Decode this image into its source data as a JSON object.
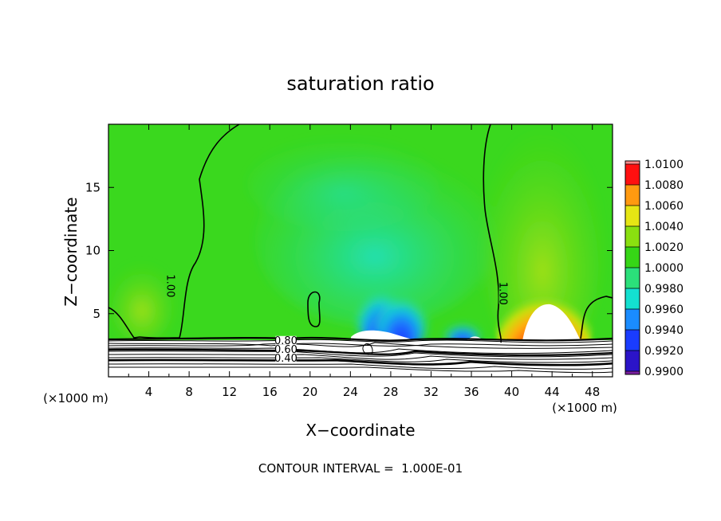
{
  "chart_data": {
    "type": "heatmap",
    "title": "saturation ratio",
    "xlabel": "X−coordinate",
    "ylabel": "Z−coordinate",
    "x_unit": "(×1000 m)",
    "z_unit": "(×1000 m)",
    "xlim": [
      0,
      50
    ],
    "ylim": [
      0,
      20
    ],
    "x_ticks": [
      4,
      8,
      12,
      16,
      20,
      24,
      28,
      32,
      36,
      40,
      44,
      48
    ],
    "x_tick_labels": [
      "4",
      "8",
      "12",
      "16",
      "20",
      "24",
      "28",
      "32",
      "36",
      "40",
      "44",
      "48"
    ],
    "y_ticks": [
      5,
      10,
      15
    ],
    "y_tick_labels": [
      "5",
      "10",
      "15"
    ],
    "colorbar": {
      "levels": [
        0.99,
        0.992,
        0.994,
        0.996,
        0.998,
        1.0,
        1.002,
        1.004,
        1.006,
        1.008,
        1.01
      ],
      "labels": [
        "0.9900",
        "0.9920",
        "0.9940",
        "0.9960",
        "0.9980",
        "1.0000",
        "1.0020",
        "1.0040",
        "1.0060",
        "1.0080",
        "1.0100"
      ],
      "colors": [
        "#7a1fa0",
        "#2b14c8",
        "#1a3cff",
        "#1a8cff",
        "#13e0d0",
        "#2be07a",
        "#36d616",
        "#8ae010",
        "#e6e614",
        "#ff9a10",
        "#ff1010",
        "#ff8a8a"
      ]
    },
    "contour_labels": [
      {
        "text": "1.00",
        "x": 5.8,
        "z": 7.2,
        "rotate": 90
      },
      {
        "text": "1.00",
        "x": 38.8,
        "z": 6.6,
        "rotate": 90
      },
      {
        "text": "0.80",
        "x": 17.6,
        "z": 2.6,
        "rotate": 0
      },
      {
        "text": "0.60",
        "x": 17.6,
        "z": 1.9,
        "rotate": 0
      },
      {
        "text": "0.40",
        "x": 17.6,
        "z": 1.2,
        "rotate": 0
      }
    ],
    "contour_interval_text": "CONTOUR INTERVAL =  1.000E-01",
    "colors": {
      "background_field": "#3ad81e",
      "lines": "#000000",
      "frame": "#000000"
    }
  }
}
